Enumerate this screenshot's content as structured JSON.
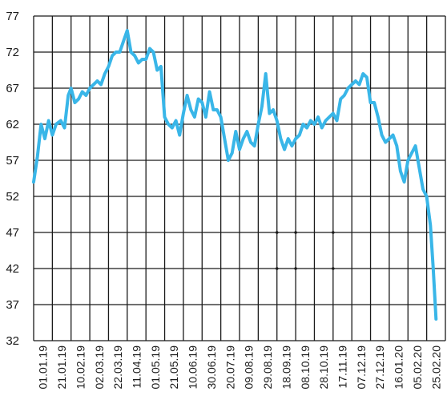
{
  "chart_data": {
    "type": "line",
    "title": "",
    "xlabel": "",
    "ylabel": "",
    "ylim": [
      32,
      77
    ],
    "y_ticks": [
      "77",
      "72",
      "67",
      "62",
      "57",
      "52",
      "47",
      "42",
      "37",
      "32"
    ],
    "x_ticks": [
      "01.01.19",
      "21.01.19",
      "10.02.19",
      "02.03.19",
      "22.03.19",
      "11.04.19",
      "01.05.19",
      "21.05.19",
      "10.06.19",
      "30.06.19",
      "20.07.19",
      "09.08.19",
      "29.08.19",
      "18.09.19",
      "08.10.19",
      "28.10.19",
      "17.11.19",
      "07.12.19",
      "27.12.19",
      "16.01.20",
      "05.02.20",
      "25.02.20"
    ],
    "grid": true,
    "line_color": "#39b6e8",
    "series": [
      {
        "x": [
          "01.01.19",
          "05.01.19",
          "09.01.19",
          "13.01.19",
          "17.01.19",
          "21.01.19",
          "25.01.19",
          "30.01.19",
          "03.02.19",
          "07.02.19",
          "10.02.19",
          "14.02.19",
          "18.02.19",
          "22.02.19",
          "26.02.19",
          "02.03.19",
          "06.03.19",
          "10.03.19",
          "14.03.19",
          "18.03.19",
          "22.03.19",
          "26.03.19",
          "30.03.19",
          "03.04.19",
          "07.04.19",
          "11.04.19",
          "15.04.19",
          "19.04.19",
          "23.04.19",
          "27.04.19",
          "01.05.19",
          "05.05.19",
          "09.05.19",
          "13.05.19",
          "17.05.19",
          "21.05.19",
          "25.05.19",
          "29.05.19",
          "02.06.19",
          "06.06.19",
          "10.06.19",
          "14.06.19",
          "18.06.19",
          "22.06.19",
          "26.06.19",
          "30.06.19",
          "04.07.19",
          "08.07.19",
          "12.07.19",
          "16.07.19",
          "20.07.19",
          "24.07.19",
          "28.07.19",
          "01.08.19",
          "05.08.19",
          "09.08.19",
          "13.08.19",
          "17.08.19",
          "21.08.19",
          "25.08.19",
          "29.08.19",
          "02.09.19",
          "06.09.19",
          "10.09.19",
          "14.09.19",
          "18.09.19",
          "22.09.19",
          "26.09.19",
          "30.09.19",
          "04.10.19",
          "08.10.19",
          "12.10.19",
          "16.10.19",
          "20.10.19",
          "24.10.19",
          "28.10.19",
          "01.11.19",
          "05.11.19",
          "09.11.19",
          "13.11.19",
          "17.11.19",
          "21.11.19",
          "25.11.19",
          "29.11.19",
          "03.12.19",
          "07.12.19",
          "11.12.19",
          "15.12.19",
          "19.12.19",
          "23.12.19",
          "27.12.19",
          "31.12.19",
          "04.01.20",
          "08.01.20",
          "12.01.20",
          "16.01.20",
          "20.01.20",
          "24.01.20",
          "28.01.20",
          "01.02.20",
          "05.02.20",
          "09.02.20",
          "13.02.20",
          "17.02.20",
          "21.02.20",
          "25.02.20",
          "29.02.20",
          "03.03.20",
          "06.03.20"
        ],
        "y": [
          54,
          57.5,
          62,
          60,
          62.5,
          60.5,
          62,
          62.5,
          61.5,
          66,
          67,
          65,
          65.5,
          66.5,
          66,
          67,
          67.5,
          68,
          67.5,
          69,
          70,
          71.5,
          72,
          72,
          73.5,
          75,
          72,
          71.5,
          70.5,
          71,
          71,
          72.5,
          72,
          69.5,
          70,
          63,
          62,
          61.5,
          62.5,
          60.5,
          63.5,
          66,
          64,
          63,
          65.5,
          65,
          63,
          66.5,
          64,
          64,
          63,
          60,
          57,
          58,
          61,
          58.5,
          60,
          61,
          59.5,
          59,
          62,
          64.5,
          69,
          63.5,
          64,
          62.5,
          60,
          58.5,
          60,
          59,
          60,
          60.5,
          62,
          61.5,
          62.5,
          62,
          63,
          61.5,
          62.5,
          63,
          63.5,
          62.5,
          65.5,
          66,
          67,
          67.5,
          68,
          67.5,
          69,
          68.5,
          65,
          65,
          63,
          60.5,
          59.5,
          60,
          60.5,
          59,
          55.5,
          54,
          57,
          58,
          59,
          56,
          53,
          52,
          48,
          42,
          35
        ]
      }
    ]
  }
}
